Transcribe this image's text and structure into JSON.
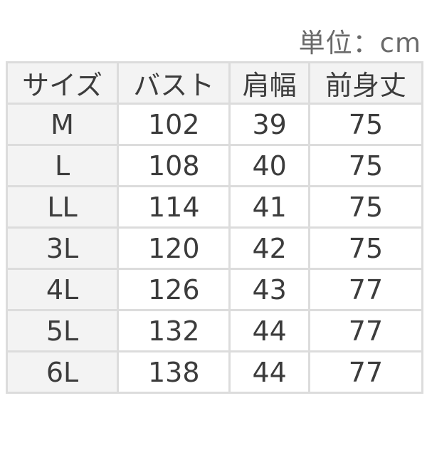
{
  "unit_label": "単位：cm",
  "table": {
    "headers": [
      "サイズ",
      "バスト",
      "肩幅",
      "前身丈"
    ],
    "rows": [
      [
        "M",
        "102",
        "39",
        "75"
      ],
      [
        "L",
        "108",
        "40",
        "75"
      ],
      [
        "LL",
        "114",
        "41",
        "75"
      ],
      [
        "3L",
        "120",
        "42",
        "75"
      ],
      [
        "4L",
        "126",
        "43",
        "77"
      ],
      [
        "5L",
        "132",
        "44",
        "77"
      ],
      [
        "6L",
        "138",
        "44",
        "77"
      ]
    ]
  }
}
